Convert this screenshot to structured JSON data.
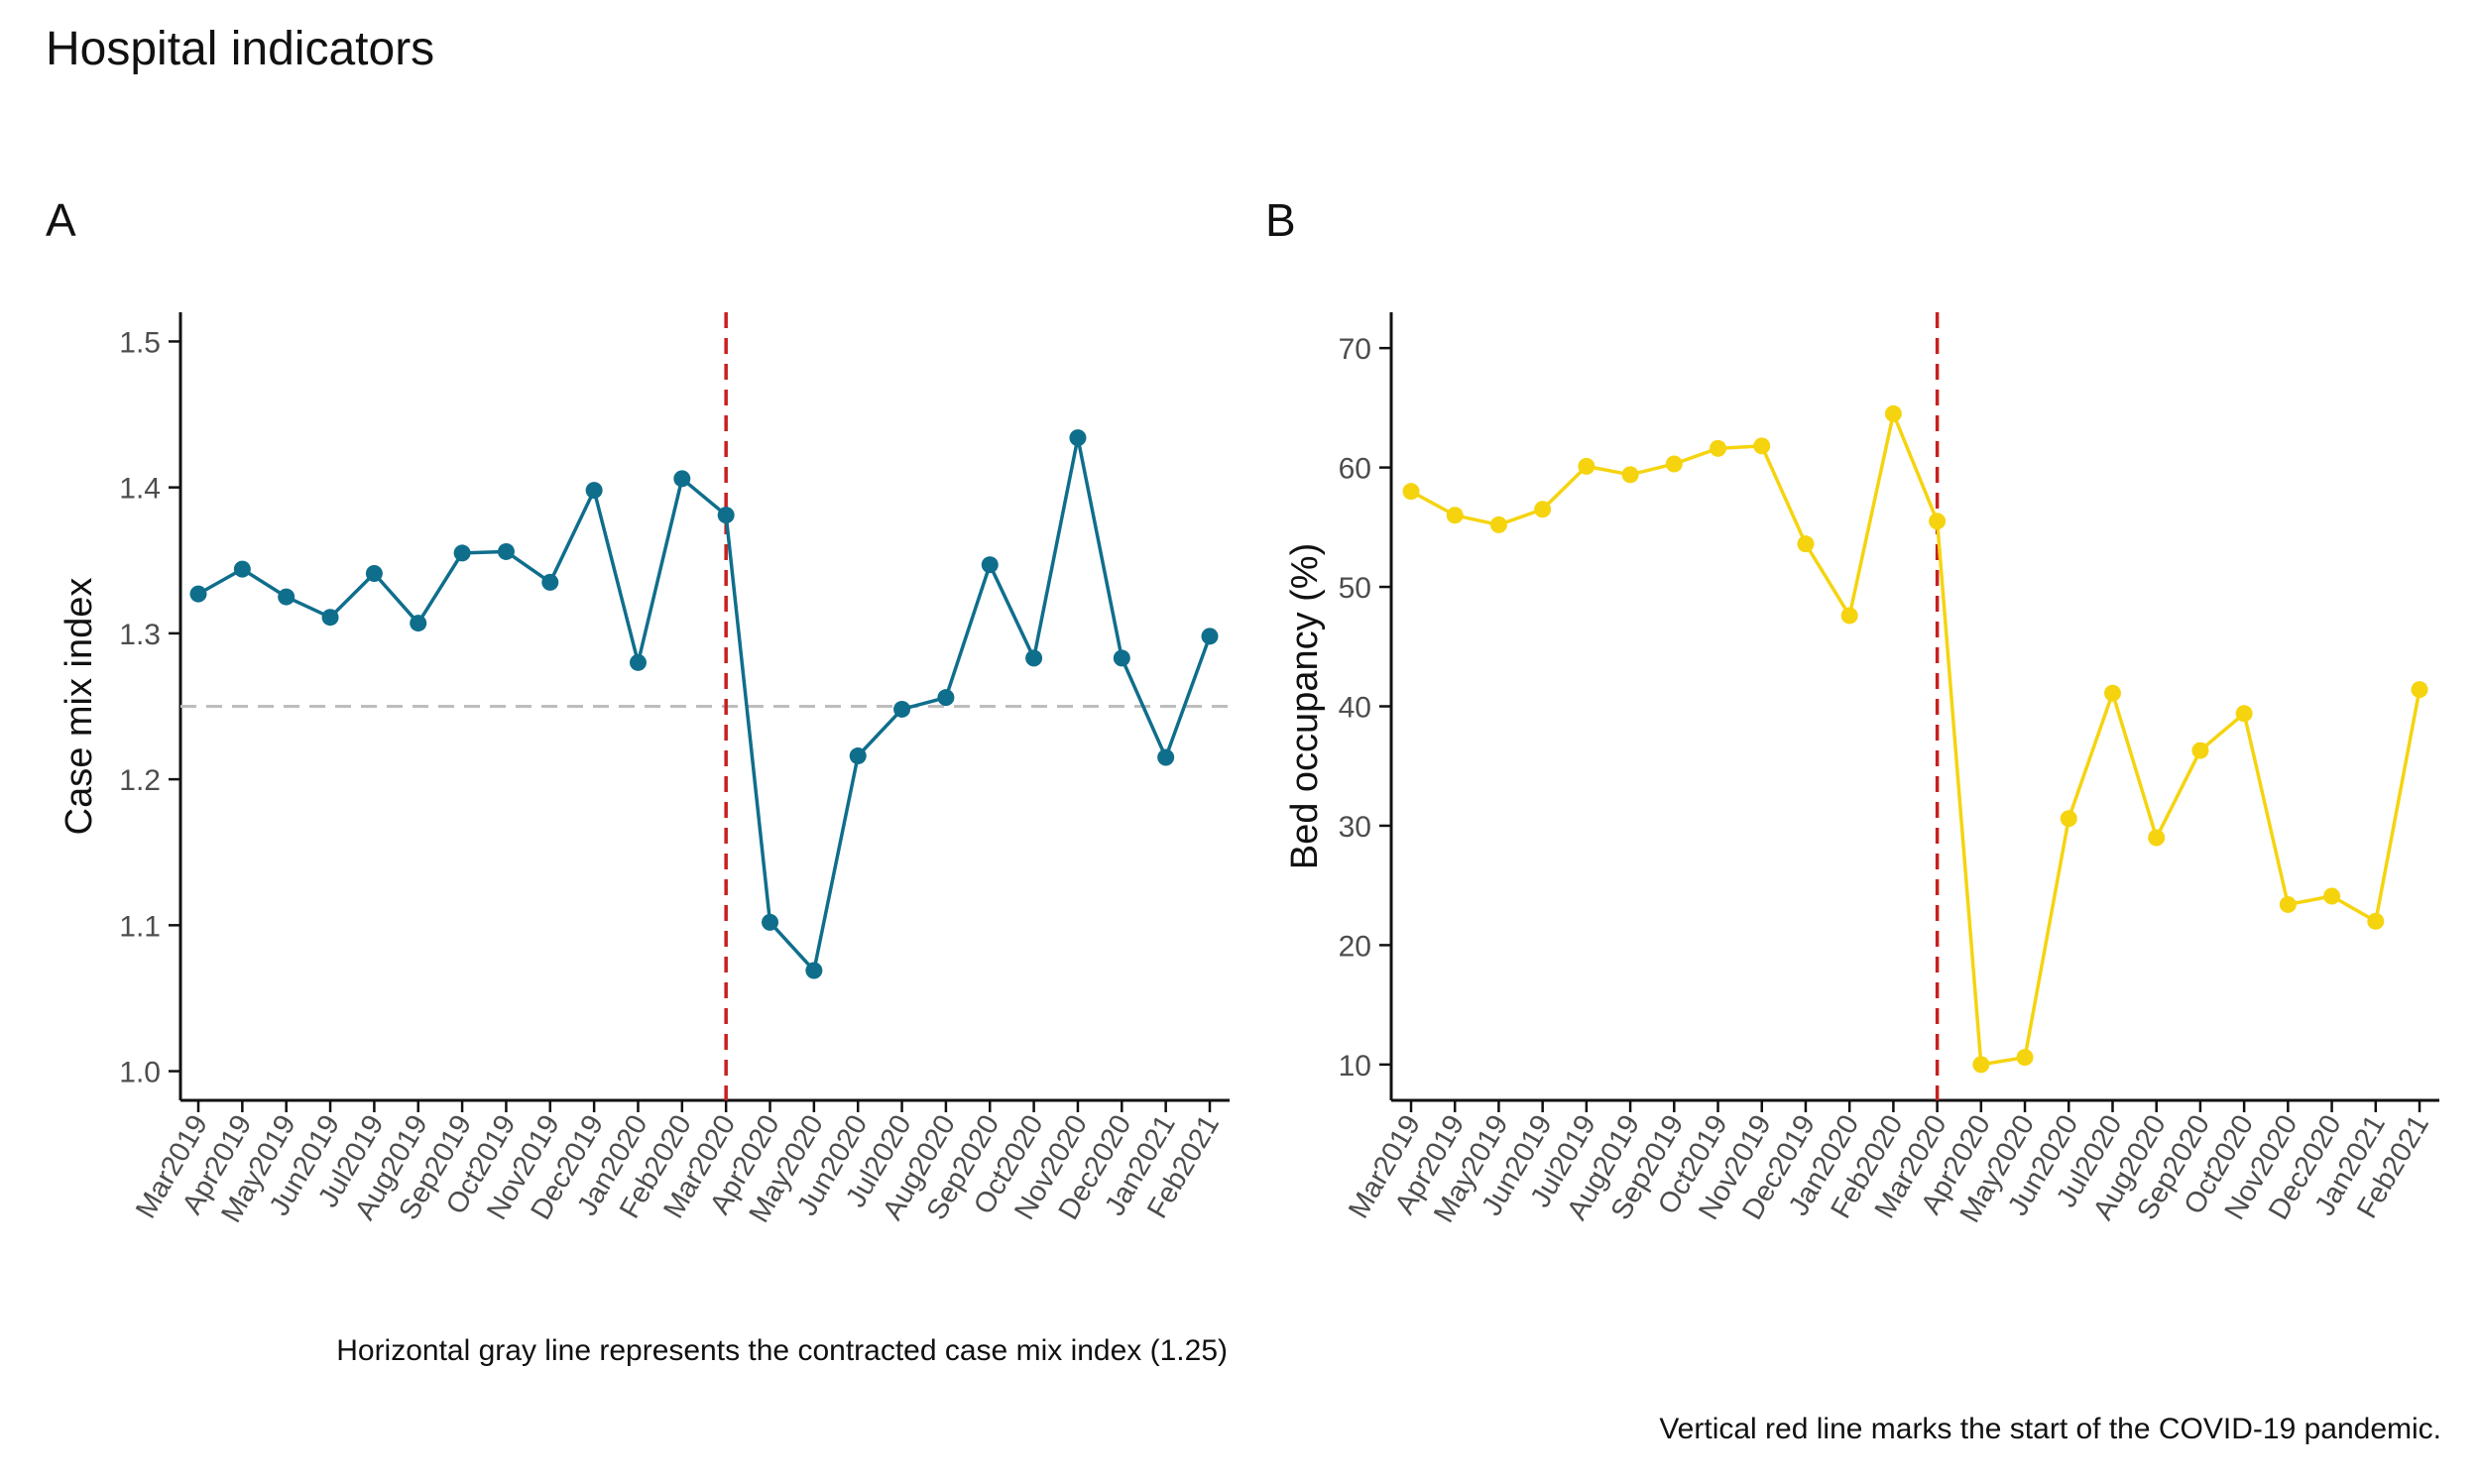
{
  "title": "Hospital indicators",
  "colors": {
    "series_a": "#0F6E8C",
    "series_b": "#F5D40F",
    "covid_line": "#C8201E",
    "reference_line": "#BDBDBD",
    "axis": "#111111"
  },
  "chart_data": [
    {
      "panel_label": "A",
      "type": "line",
      "ylabel": "Case mix index",
      "ylim": [
        0.98,
        1.52
      ],
      "yticks": [
        1.0,
        1.1,
        1.2,
        1.3,
        1.4,
        1.5
      ],
      "ytick_labels": [
        "1.0",
        "1.1",
        "1.2",
        "1.3",
        "1.4",
        "1.5"
      ],
      "categories": [
        "Mar2019",
        "Apr2019",
        "May2019",
        "Jun2019",
        "Jul2019",
        "Aug2019",
        "Sep2019",
        "Oct2019",
        "Nov2019",
        "Dec2019",
        "Jan2020",
        "Feb2020",
        "Mar2020",
        "Apr2020",
        "May2020",
        "Jun2020",
        "Jul2020",
        "Aug2020",
        "Sep2020",
        "Oct2020",
        "Nov2020",
        "Dec2020",
        "Jan2021",
        "Feb2021"
      ],
      "values": [
        1.327,
        1.344,
        1.325,
        1.311,
        1.341,
        1.307,
        1.355,
        1.356,
        1.335,
        1.398,
        1.28,
        1.406,
        1.381,
        1.102,
        1.069,
        1.216,
        1.248,
        1.256,
        1.347,
        1.283,
        1.434,
        1.283,
        1.215,
        1.298
      ],
      "reference_hline": 1.25,
      "covid_vline_category": "Mar2020",
      "caption": "Horizontal gray line represents the contracted case mix index (1.25)"
    },
    {
      "panel_label": "B",
      "type": "line",
      "ylabel": "Bed occupancy (%)",
      "ylim": [
        7,
        73
      ],
      "yticks": [
        10,
        20,
        30,
        40,
        50,
        60,
        70
      ],
      "ytick_labels": [
        "10",
        "20",
        "30",
        "40",
        "50",
        "60",
        "70"
      ],
      "categories": [
        "Mar2019",
        "Apr2019",
        "May2019",
        "Jun2019",
        "Jul2019",
        "Aug2019",
        "Sep2019",
        "Oct2019",
        "Nov2019",
        "Dec2019",
        "Jan2020",
        "Feb2020",
        "Mar2020",
        "Apr2020",
        "May2020",
        "Jun2020",
        "Jul2020",
        "Aug2020",
        "Sep2020",
        "Oct2020",
        "Nov2020",
        "Dec2020",
        "Jan2021",
        "Feb2021"
      ],
      "values": [
        58.0,
        56.0,
        55.2,
        56.5,
        60.1,
        59.4,
        60.3,
        61.6,
        61.8,
        53.6,
        47.6,
        64.5,
        55.5,
        10.0,
        10.6,
        30.6,
        41.1,
        29.0,
        36.3,
        39.4,
        23.4,
        24.1,
        22.0,
        41.4
      ],
      "covid_vline_category": "Mar2020",
      "caption": "Vertical red line marks the start of the COVID-19 pandemic."
    }
  ]
}
